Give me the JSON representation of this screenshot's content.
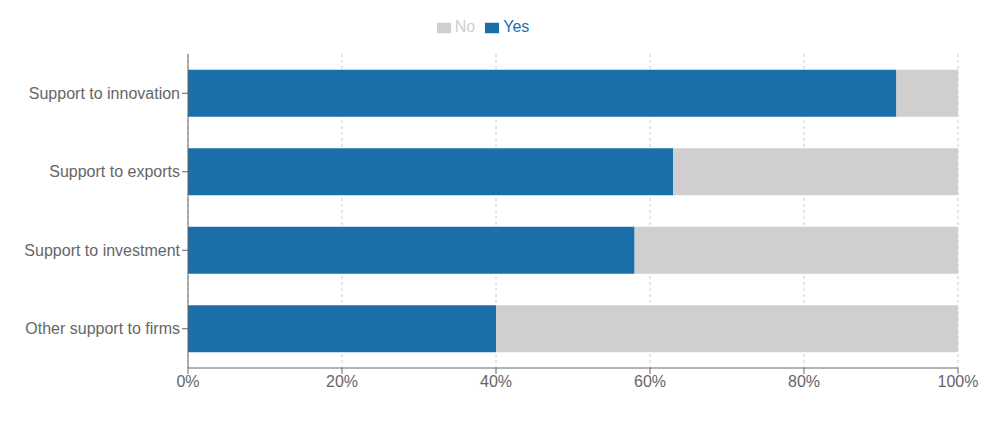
{
  "chart_data": {
    "type": "bar",
    "orientation": "horizontal",
    "stacked": true,
    "categories": [
      "Support to innovation",
      "Support to exports",
      "Support to investment",
      "Other support to firms"
    ],
    "series": [
      {
        "name": "Yes",
        "color": "#1a6fa8",
        "values": [
          92,
          63,
          58,
          40
        ]
      },
      {
        "name": "No",
        "color": "#d0cece",
        "values": [
          8,
          37,
          42,
          60
        ]
      }
    ],
    "xlim": [
      0,
      100
    ],
    "xticks": [
      {
        "value": 0,
        "label": "0%"
      },
      {
        "value": 20,
        "label": "20%"
      },
      {
        "value": 40,
        "label": "40%"
      },
      {
        "value": 60,
        "label": "60%"
      },
      {
        "value": 80,
        "label": "80%"
      },
      {
        "value": 100,
        "label": "100%"
      }
    ],
    "grid": true,
    "legend": "top"
  }
}
